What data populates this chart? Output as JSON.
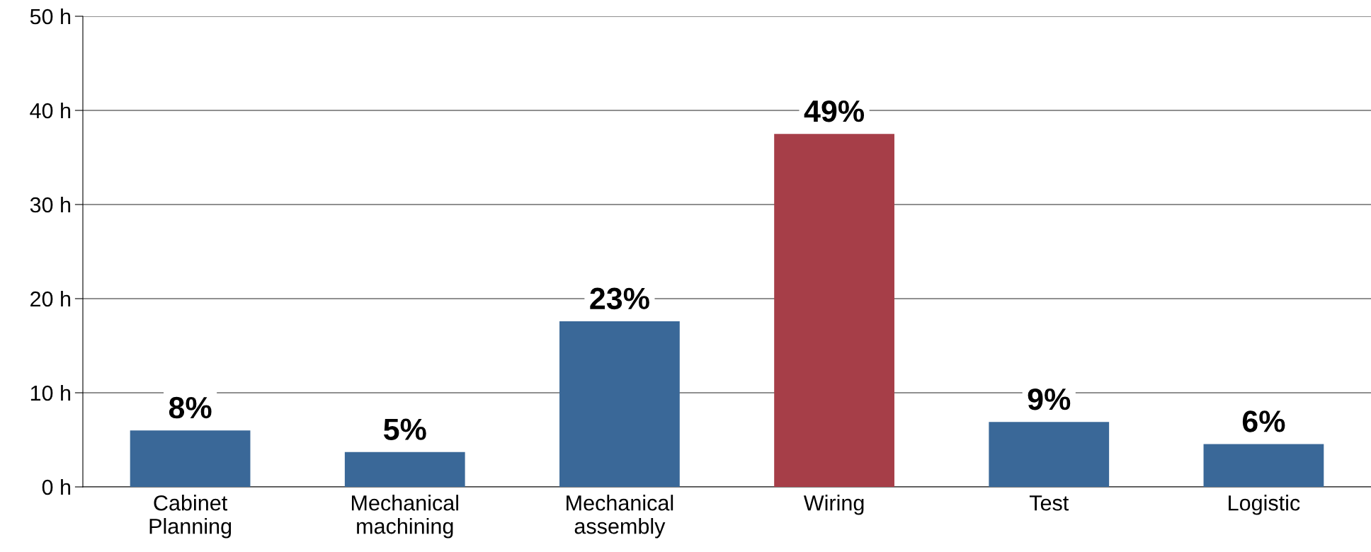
{
  "chart_data": {
    "type": "bar",
    "categories": [
      "Cabinet\nPlanning",
      "Mechanical\nmachining",
      "Mechanical\nassembly",
      "Wiring",
      "Test",
      "Logistic"
    ],
    "values": [
      6.0,
      3.7,
      17.6,
      37.5,
      6.9,
      4.55
    ],
    "colors": [
      "#3a6898",
      "#3a6898",
      "#3a6898",
      "#a63e48",
      "#3a6898",
      "#3a6898"
    ],
    "annotations": [
      {
        "text": "8%",
        "x": "Cabinet\nPlanning",
        "y": 6.0
      },
      {
        "text": "5%",
        "x": "Mechanical\nmachining",
        "y": 3.7
      },
      {
        "text": "23%",
        "x": "Mechanical\nassembly",
        "y": 17.6
      },
      {
        "text": "49%",
        "x": "Wiring",
        "y": 37.5
      },
      {
        "text": "9%",
        "x": "Test",
        "y": 6.9
      },
      {
        "text": "6%",
        "x": "Logistic",
        "y": 4.55
      }
    ],
    "ylim": [
      0,
      50
    ],
    "yticks": [
      {
        "value": 0,
        "label": "0 h"
      },
      {
        "value": 10,
        "label": "10 h"
      },
      {
        "value": 20,
        "label": "20 h"
      },
      {
        "value": 30,
        "label": "30 h"
      },
      {
        "value": 40,
        "label": "40 h"
      },
      {
        "value": 50,
        "label": "50 h"
      }
    ],
    "grid": "y"
  }
}
